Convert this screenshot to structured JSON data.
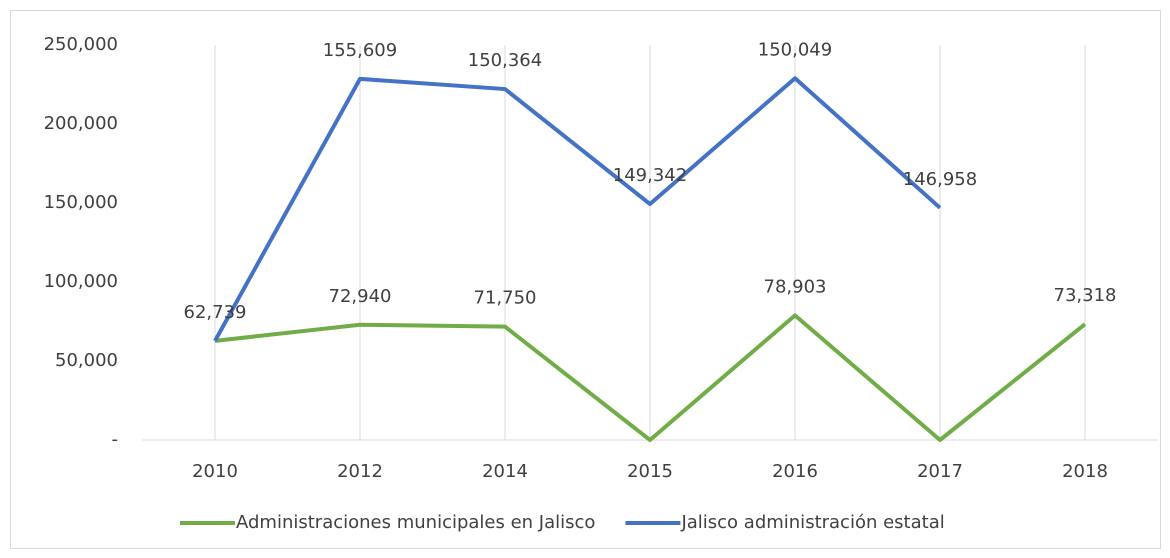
{
  "chart_data": {
    "type": "line",
    "stacked": true,
    "categories": [
      "2010",
      "2012",
      "2014",
      "2015",
      "2016",
      "2017",
      "2018"
    ],
    "series": [
      {
        "name": "Administraciones municipales en Jalisco",
        "color": "#70ad47",
        "values": [
          62739,
          72940,
          71750,
          0,
          78903,
          0,
          73318
        ],
        "value_labels": [
          "62,739",
          "72,940",
          "71,750",
          null,
          "78,903",
          null,
          "73,318"
        ]
      },
      {
        "name": "Jalisco administración estatal",
        "color": "#4472c4",
        "values": [
          0,
          155609,
          150364,
          149342,
          150049,
          146958,
          null
        ],
        "value_labels": [
          null,
          "155,609",
          "150,364",
          "149,342",
          "150,049",
          "146,958",
          null
        ]
      }
    ],
    "ylim": [
      0,
      250000
    ],
    "yticks": [
      {
        "value": 0,
        "label": "-"
      },
      {
        "value": 50000,
        "label": "50,000"
      },
      {
        "value": 100000,
        "label": "100,000"
      },
      {
        "value": 150000,
        "label": "150,000"
      },
      {
        "value": 200000,
        "label": "200,000"
      },
      {
        "value": 250000,
        "label": "250,000"
      }
    ],
    "grid": true,
    "legend": "bottom"
  }
}
